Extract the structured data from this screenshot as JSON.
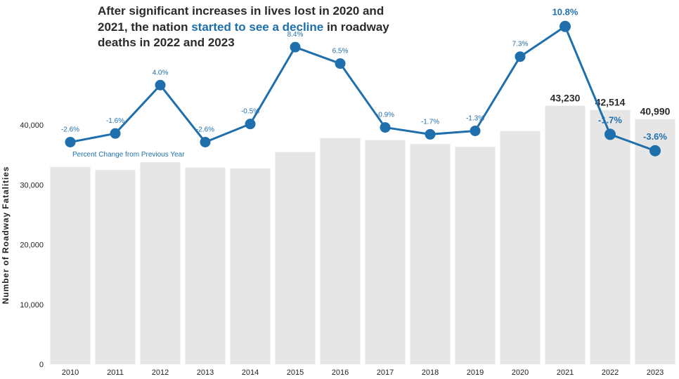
{
  "title": {
    "part1": "After significant increases in lives lost in 2020 and 2021, the nation ",
    "highlight1": "started to see a decline",
    "part2": " in roadway deaths in 2022 and 2023"
  },
  "colors": {
    "bars": "#e6e6e6",
    "line": "#1f6fad",
    "title_text": "#2b2b2b",
    "axis_text": "#222222"
  },
  "chart_data": {
    "type": "bar",
    "title": "After significant increases in lives lost in 2020 and 2021, the nation started to see a decline in roadway deaths in 2022 and 2023",
    "ylabel": "Number of Roadway Fatalities",
    "xlabel": "",
    "ylim": [
      0,
      46000
    ],
    "yticks": [
      0,
      10000,
      20000,
      30000,
      40000
    ],
    "ytick_labels": [
      "0",
      "10,000",
      "20,000",
      "30,000",
      "40,000"
    ],
    "categories": [
      "2010",
      "2011",
      "2012",
      "2013",
      "2014",
      "2015",
      "2016",
      "2017",
      "2018",
      "2019",
      "2020",
      "2021",
      "2022",
      "2023"
    ],
    "values": [
      32999,
      32479,
      33782,
      32893,
      32744,
      35484,
      37806,
      37473,
      36835,
      36355,
      39007,
      43230,
      42514,
      40990
    ],
    "bar_labels": {
      "2021": "43,230",
      "2022": "42,514",
      "2023": "40,990"
    },
    "grid": false,
    "overlay_series": {
      "type": "line",
      "name": "Percent Change from Previous Year",
      "values": [
        -2.6,
        -1.6,
        4.0,
        -2.6,
        -0.5,
        8.4,
        6.5,
        -0.9,
        -1.7,
        -1.3,
        7.3,
        10.8,
        -1.7,
        -3.6
      ],
      "labels": [
        "-2.6%",
        "-1.6%",
        "4.0%",
        "-2.6%",
        "-0.5%",
        "8.4%",
        "6.5%",
        "-0.9%",
        "-1.7%",
        "-1.3%",
        "7.3%",
        "10.8%",
        "-1.7%",
        "-3.6%"
      ]
    }
  }
}
